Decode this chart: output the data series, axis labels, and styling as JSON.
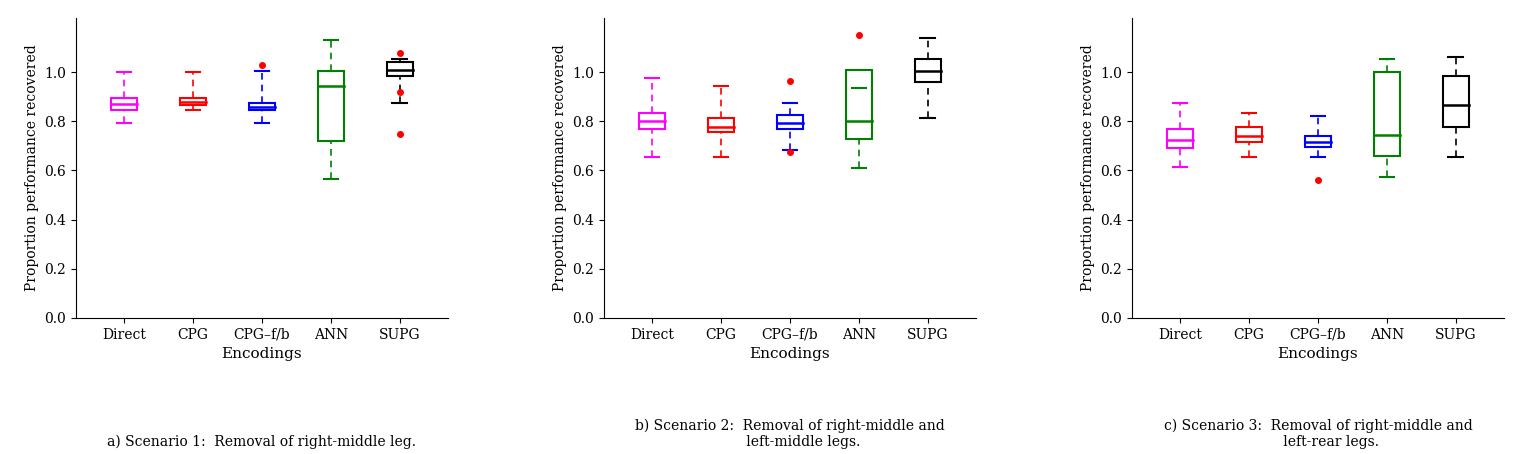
{
  "categories": [
    "Direct",
    "CPG",
    "CPG–f/b",
    "ANN",
    "SUPG"
  ],
  "colors": [
    "magenta",
    "red",
    "blue",
    "green",
    "black"
  ],
  "ylabel": "Proportion performance recovered",
  "xlabel": "Encodings",
  "scenarios": [
    {
      "name": "Scenario 1",
      "boxes": [
        {
          "whislo": 0.795,
          "q1": 0.845,
          "med": 0.87,
          "q3": 0.895,
          "whishi": 1.0,
          "fliers": []
        },
        {
          "whislo": 0.848,
          "q1": 0.865,
          "med": 0.878,
          "q3": 0.895,
          "whishi": 1.0,
          "fliers": []
        },
        {
          "whislo": 0.795,
          "q1": 0.847,
          "med": 0.86,
          "q3": 0.875,
          "whishi": 1.005,
          "fliers": [
            1.03
          ]
        },
        {
          "whislo": 0.565,
          "q1": 0.72,
          "med": 0.945,
          "q3": 1.005,
          "whishi": 1.13,
          "fliers": []
        },
        {
          "whislo": 0.875,
          "q1": 0.985,
          "med": 1.01,
          "q3": 1.04,
          "whishi": 1.055,
          "fliers": [
            0.75,
            0.92,
            1.08
          ]
        }
      ]
    },
    {
      "name": "Scenario 2",
      "boxes": [
        {
          "whislo": 0.655,
          "q1": 0.77,
          "med": 0.8,
          "q3": 0.835,
          "whishi": 0.975,
          "fliers": []
        },
        {
          "whislo": 0.655,
          "q1": 0.755,
          "med": 0.778,
          "q3": 0.815,
          "whishi": 0.945,
          "fliers": []
        },
        {
          "whislo": 0.685,
          "q1": 0.77,
          "med": 0.795,
          "q3": 0.825,
          "whishi": 0.875,
          "fliers": [
            0.675,
            0.965
          ]
        },
        {
          "whislo": 0.61,
          "q1": 0.73,
          "med": 0.8,
          "q3": 1.01,
          "whishi": 0.935,
          "fliers": [
            1.15
          ]
        },
        {
          "whislo": 0.815,
          "q1": 0.96,
          "med": 1.005,
          "q3": 1.055,
          "whishi": 1.14,
          "fliers": []
        }
      ]
    },
    {
      "name": "Scenario 3",
      "boxes": [
        {
          "whislo": 0.615,
          "q1": 0.69,
          "med": 0.725,
          "q3": 0.77,
          "whishi": 0.875,
          "fliers": []
        },
        {
          "whislo": 0.655,
          "q1": 0.715,
          "med": 0.74,
          "q3": 0.775,
          "whishi": 0.835,
          "fliers": []
        },
        {
          "whislo": 0.655,
          "q1": 0.695,
          "med": 0.715,
          "q3": 0.74,
          "whishi": 0.82,
          "fliers": [
            0.56
          ]
        },
        {
          "whislo": 0.575,
          "q1": 0.66,
          "med": 0.745,
          "q3": 1.0,
          "whishi": 1.055,
          "fliers": []
        },
        {
          "whislo": 0.655,
          "q1": 0.775,
          "med": 0.865,
          "q3": 0.985,
          "whishi": 1.06,
          "fliers": []
        }
      ]
    }
  ],
  "ylim": [
    0,
    1.22
  ],
  "yticks": [
    0,
    0.2,
    0.4,
    0.6,
    0.8,
    1.0
  ],
  "figsize": [
    15.19,
    4.54
  ],
  "dpi": 100,
  "box_width": 0.38,
  "subplot_captions": [
    "a) Scenario 1:  Removal of right-middle leg.",
    "b) Scenario 2:  Removal of right-middle and\n      left-middle legs.",
    "c) Scenario 3:  Removal of right-middle and\n      left-rear legs."
  ]
}
